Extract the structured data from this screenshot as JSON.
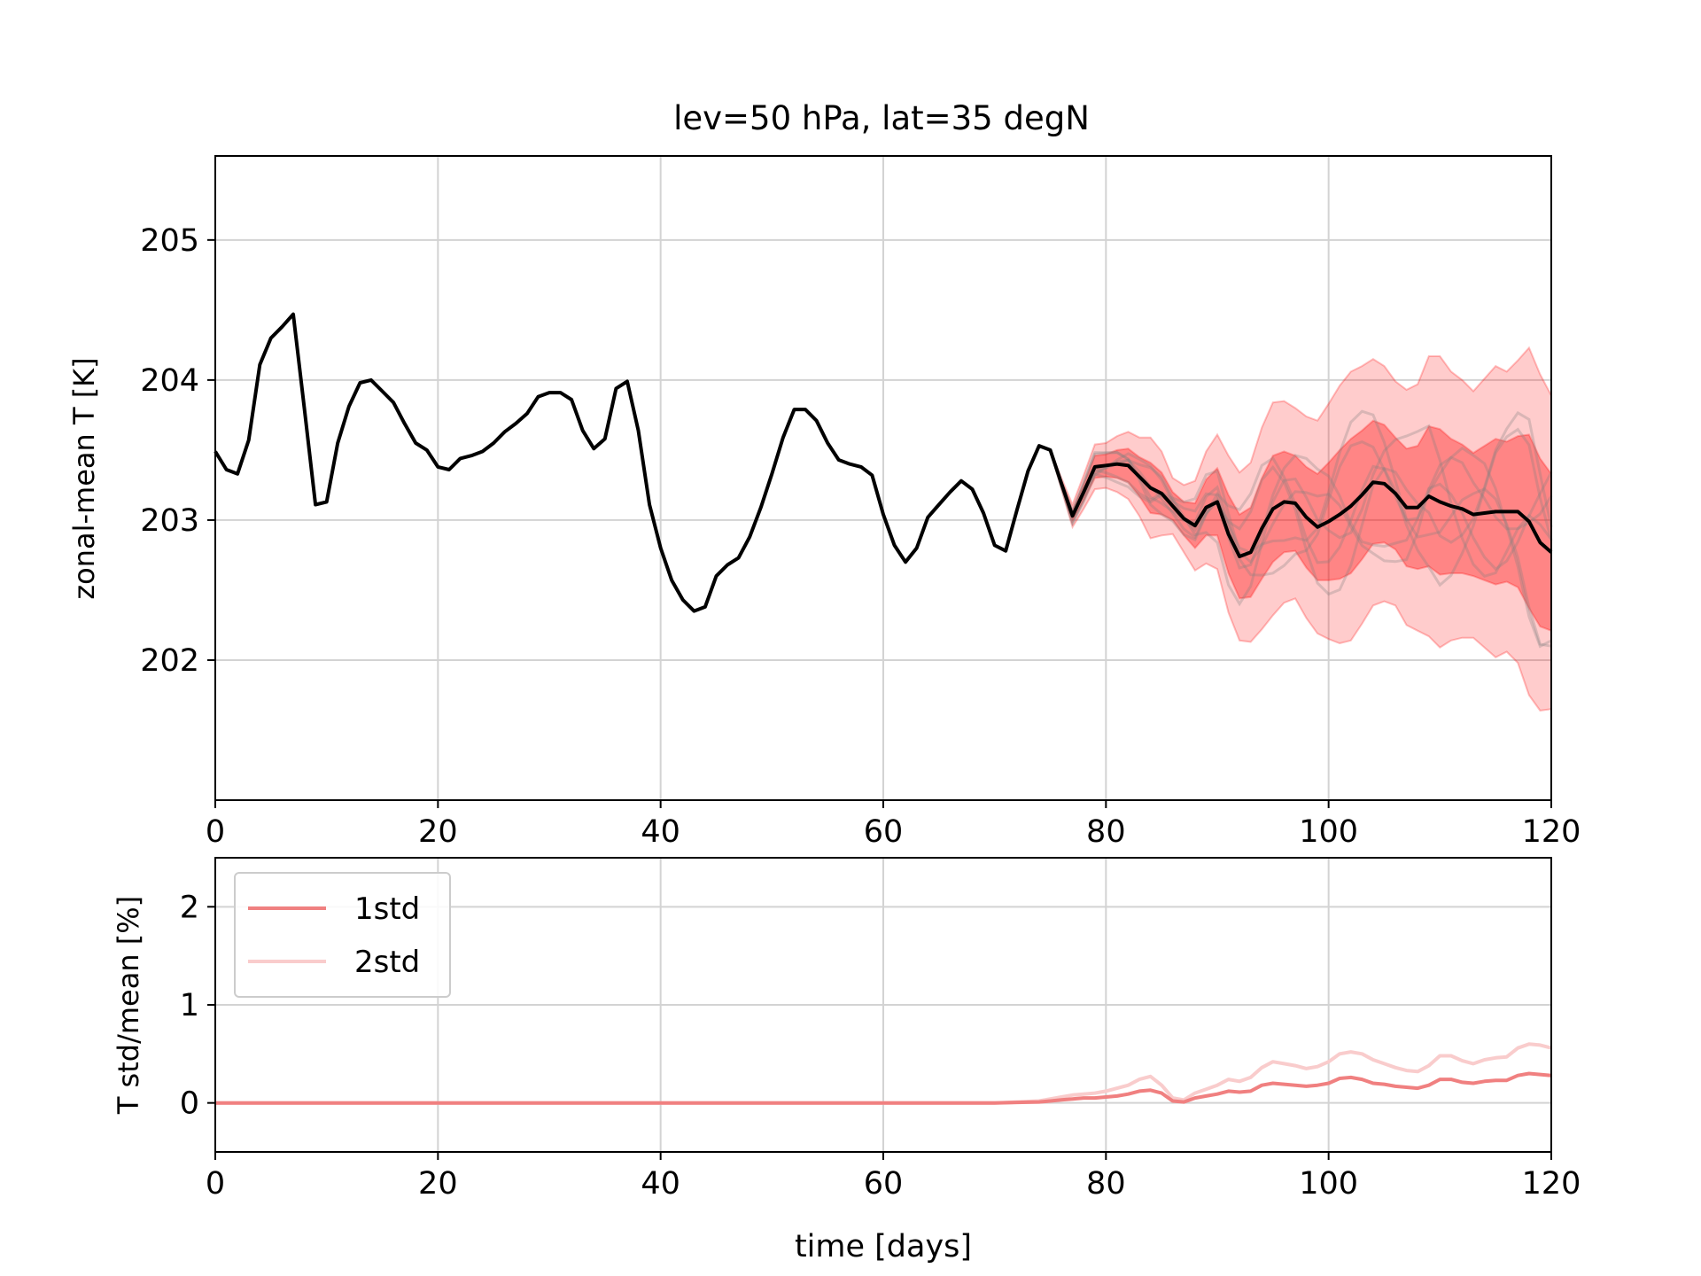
{
  "chart_data": [
    {
      "type": "line",
      "title": "lev=50 hPa, lat=35 degN",
      "xlabel": "",
      "ylabel": "zonal-mean T  [K]",
      "xlim": [
        0,
        120
      ],
      "ylim": [
        201.0,
        205.6
      ],
      "grid": true,
      "x_ticks": [
        "0",
        "20",
        "40",
        "60",
        "80",
        "100",
        "120"
      ],
      "y_ticks": [
        "202",
        "203",
        "204",
        "205"
      ],
      "colors": {
        "mean": "#000000",
        "band_1std": "#ff0000",
        "band_2std": "#ff0000",
        "members": "#808080"
      },
      "series": [
        {
          "name": "",
          "x": [
            0,
            1,
            2,
            3,
            4,
            5,
            6,
            7,
            8,
            9,
            10,
            11,
            12,
            13,
            14,
            15,
            16,
            17,
            18,
            19,
            20,
            21,
            22,
            23,
            24,
            25,
            26,
            27,
            28,
            29,
            30,
            31,
            32,
            33,
            34,
            35,
            36,
            37,
            38,
            39,
            40,
            41,
            42,
            43,
            44,
            45,
            46,
            47,
            48,
            49,
            50,
            51,
            52,
            53,
            54,
            55,
            56,
            57,
            58,
            59,
            60,
            61,
            62,
            63,
            64,
            65,
            66,
            67,
            68,
            69,
            70,
            71,
            72,
            73,
            74,
            75,
            76,
            77,
            78,
            79,
            80,
            81,
            82,
            83,
            84,
            85,
            86,
            87,
            88,
            89,
            90,
            91,
            92,
            93,
            94,
            95,
            96,
            97,
            98,
            99,
            100,
            101,
            102,
            103,
            104,
            105,
            106,
            107,
            108,
            109,
            110,
            111,
            112,
            113,
            114,
            115,
            116,
            117,
            118,
            119,
            120
          ],
          "y": [
            203.49,
            203.36,
            203.33,
            203.57,
            204.11,
            204.3,
            204.38,
            204.47,
            203.8,
            203.11,
            203.13,
            203.55,
            203.81,
            203.98,
            204.0,
            203.92,
            203.84,
            203.69,
            203.55,
            203.5,
            203.38,
            203.36,
            203.44,
            203.46,
            203.49,
            203.55,
            203.63,
            203.69,
            203.76,
            203.88,
            203.91,
            203.91,
            203.86,
            203.64,
            203.51,
            203.58,
            203.94,
            203.99,
            203.64,
            203.11,
            202.8,
            202.57,
            202.43,
            202.35,
            202.38,
            202.6,
            202.68,
            202.73,
            202.88,
            203.09,
            203.33,
            203.59,
            203.79,
            203.79,
            203.71,
            203.55,
            203.43,
            203.4,
            203.38,
            203.32,
            203.04,
            202.82,
            202.7,
            202.8,
            203.02,
            203.11,
            203.2,
            203.28,
            203.22,
            203.05,
            202.82,
            202.78,
            203.07,
            203.35,
            203.53,
            203.5,
            203.26,
            203.03,
            203.2,
            203.38,
            203.39,
            203.4,
            203.39,
            203.31,
            203.23,
            203.19,
            203.1,
            203.01,
            202.96,
            203.09,
            203.13,
            202.9,
            202.74,
            202.77,
            202.94,
            203.08,
            203.13,
            203.12,
            203.02,
            202.95,
            202.99,
            203.04,
            203.1,
            203.18,
            203.27,
            203.26,
            203.19,
            203.09,
            203.09,
            203.17,
            203.13,
            203.1,
            203.08,
            203.04,
            203.05,
            203.06,
            203.06,
            203.06,
            202.99,
            202.84,
            202.77
          ]
        }
      ],
      "bands": {
        "x": [
          75,
          76,
          77,
          78,
          79,
          80,
          81,
          82,
          83,
          84,
          85,
          86,
          87,
          88,
          89,
          90,
          91,
          92,
          93,
          94,
          95,
          96,
          97,
          98,
          99,
          100,
          101,
          102,
          103,
          104,
          105,
          106,
          107,
          108,
          109,
          110,
          111,
          112,
          113,
          114,
          115,
          116,
          117,
          118,
          119,
          120
        ],
        "std": [
          0.0,
          0.02,
          0.04,
          0.06,
          0.08,
          0.08,
          0.1,
          0.12,
          0.14,
          0.18,
          0.15,
          0.1,
          0.12,
          0.16,
          0.2,
          0.24,
          0.28,
          0.3,
          0.32,
          0.36,
          0.38,
          0.36,
          0.34,
          0.36,
          0.38,
          0.42,
          0.46,
          0.48,
          0.46,
          0.44,
          0.42,
          0.4,
          0.42,
          0.44,
          0.5,
          0.52,
          0.48,
          0.46,
          0.44,
          0.48,
          0.52,
          0.5,
          0.54,
          0.62,
          0.6,
          0.56
        ]
      },
      "members_count": 7
    },
    {
      "type": "line",
      "title": "",
      "xlabel": "time  [days]",
      "ylabel": "T std/mean  [%]",
      "xlim": [
        0,
        120
      ],
      "ylim": [
        -0.5,
        2.5
      ],
      "grid": true,
      "x_ticks": [
        "0",
        "20",
        "40",
        "60",
        "80",
        "100",
        "120"
      ],
      "y_ticks": [
        "0",
        "1",
        "2"
      ],
      "legend": "upper-left",
      "series": [
        {
          "name": "1std",
          "color": "#f08080",
          "x": [
            0,
            70,
            72,
            74,
            75,
            76,
            77,
            78,
            79,
            80,
            81,
            82,
            83,
            84,
            85,
            86,
            87,
            88,
            89,
            90,
            91,
            92,
            93,
            94,
            95,
            96,
            97,
            98,
            99,
            100,
            101,
            102,
            103,
            104,
            105,
            106,
            107,
            108,
            109,
            110,
            111,
            112,
            113,
            114,
            115,
            116,
            117,
            118,
            119,
            120
          ],
          "y": [
            0,
            0,
            0.005,
            0.01,
            0.02,
            0.03,
            0.04,
            0.05,
            0.05,
            0.06,
            0.07,
            0.09,
            0.12,
            0.13,
            0.1,
            0.02,
            0.01,
            0.05,
            0.07,
            0.09,
            0.12,
            0.11,
            0.12,
            0.18,
            0.2,
            0.19,
            0.18,
            0.17,
            0.18,
            0.2,
            0.25,
            0.26,
            0.24,
            0.2,
            0.19,
            0.17,
            0.16,
            0.15,
            0.18,
            0.24,
            0.24,
            0.21,
            0.2,
            0.22,
            0.23,
            0.23,
            0.28,
            0.3,
            0.29,
            0.28
          ]
        },
        {
          "name": "2std",
          "color": "#f9cccc",
          "x": [
            0,
            70,
            72,
            74,
            75,
            76,
            77,
            78,
            79,
            80,
            81,
            82,
            83,
            84,
            85,
            86,
            87,
            88,
            89,
            90,
            91,
            92,
            93,
            94,
            95,
            96,
            97,
            98,
            99,
            100,
            101,
            102,
            103,
            104,
            105,
            106,
            107,
            108,
            109,
            110,
            111,
            112,
            113,
            114,
            115,
            116,
            117,
            118,
            119,
            120
          ],
          "y": [
            0,
            0,
            0.01,
            0.02,
            0.04,
            0.06,
            0.08,
            0.09,
            0.1,
            0.12,
            0.15,
            0.18,
            0.24,
            0.27,
            0.18,
            0.05,
            0.03,
            0.1,
            0.14,
            0.18,
            0.24,
            0.22,
            0.26,
            0.36,
            0.42,
            0.4,
            0.38,
            0.35,
            0.37,
            0.42,
            0.5,
            0.52,
            0.5,
            0.44,
            0.4,
            0.36,
            0.33,
            0.32,
            0.38,
            0.48,
            0.48,
            0.43,
            0.4,
            0.44,
            0.46,
            0.47,
            0.56,
            0.6,
            0.59,
            0.56
          ]
        }
      ]
    }
  ]
}
